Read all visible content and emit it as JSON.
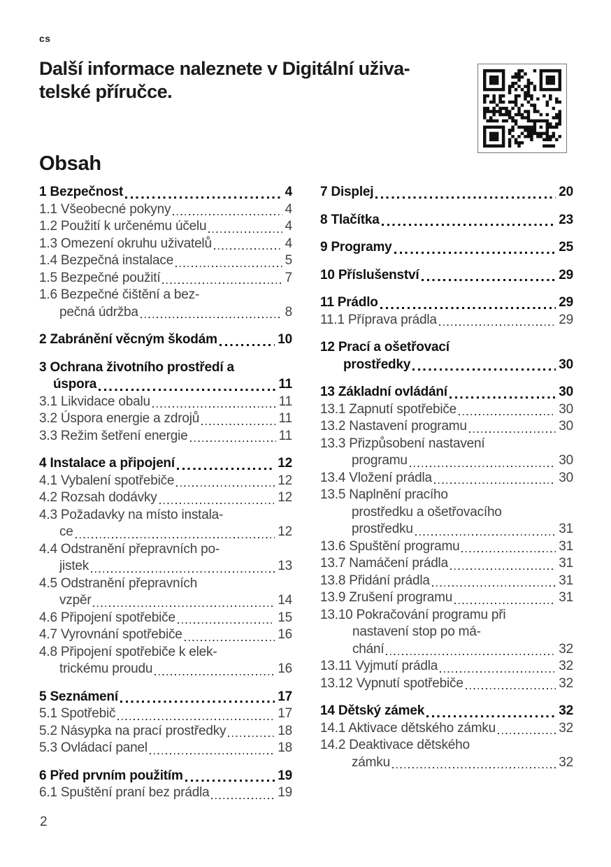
{
  "page": {
    "language_code": "cs",
    "heading_lines": [
      "Další informace naleznete v Digitální uživa-",
      "telské příručce."
    ],
    "qr_icon": "qr-code",
    "toc_title": "Obsah",
    "footer_page_number": "2"
  },
  "toc": {
    "columns": [
      [
        {
          "bold": true,
          "lines": [
            "1 Bezpečnost"
          ],
          "page": "4"
        },
        {
          "bold": false,
          "lines": [
            "1.1 Všeobecné pokyny"
          ],
          "page": "4"
        },
        {
          "bold": false,
          "lines": [
            "1.2 Použití k určenému účelu"
          ],
          "page": "4"
        },
        {
          "bold": false,
          "lines": [
            "1.3 Omezení okruhu uživatelů"
          ],
          "page": "4"
        },
        {
          "bold": false,
          "lines": [
            "1.4 Bezpečná instalace"
          ],
          "page": "5"
        },
        {
          "bold": false,
          "lines": [
            "1.5 Bezpečné použití"
          ],
          "page": "7"
        },
        {
          "bold": false,
          "lines": [
            "1.6 Bezpečné čištění a bez-",
            "pečná údržba"
          ],
          "page": "8",
          "indent": 29
        },
        {
          "bold": true,
          "lines": [
            "2 Zabránění věcným škodám"
          ],
          "page": "10"
        },
        {
          "bold": true,
          "lines": [
            "3 Ochrana životního prostředí a",
            "úspora"
          ],
          "page": "11",
          "indent": 20
        },
        {
          "bold": false,
          "lines": [
            "3.1 Likvidace obalu"
          ],
          "page": "11"
        },
        {
          "bold": false,
          "lines": [
            "3.2 Úspora energie a zdrojů"
          ],
          "page": "11"
        },
        {
          "bold": false,
          "lines": [
            "3.3 Režim šetření energie"
          ],
          "page": "11"
        },
        {
          "bold": true,
          "lines": [
            "4 Instalace a připojení"
          ],
          "page": "12"
        },
        {
          "bold": false,
          "lines": [
            "4.1 Vybalení spotřebiče"
          ],
          "page": "12"
        },
        {
          "bold": false,
          "lines": [
            "4.2 Rozsah dodávky"
          ],
          "page": "12"
        },
        {
          "bold": false,
          "lines": [
            "4.3 Požadavky na místo instala-",
            "ce"
          ],
          "page": "12",
          "indent": 29
        },
        {
          "bold": false,
          "lines": [
            "4.4 Odstranění přepravních po-",
            "jistek"
          ],
          "page": "13",
          "indent": 29
        },
        {
          "bold": false,
          "lines": [
            "4.5 Odstranění přepravních",
            "vzpěr"
          ],
          "page": "14",
          "indent": 29
        },
        {
          "bold": false,
          "lines": [
            "4.6 Připojení spotřebiče"
          ],
          "page": "15"
        },
        {
          "bold": false,
          "lines": [
            "4.7 Vyrovnání spotřebiče"
          ],
          "page": "16"
        },
        {
          "bold": false,
          "lines": [
            "4.8 Připojení spotřebiče k elek-",
            "trickému proudu"
          ],
          "page": "16",
          "indent": 29
        },
        {
          "bold": true,
          "lines": [
            "5 Seznámení"
          ],
          "page": "17"
        },
        {
          "bold": false,
          "lines": [
            "5.1 Spotřebič"
          ],
          "page": "17"
        },
        {
          "bold": false,
          "lines": [
            "5.2 Násypka na prací prostředky"
          ],
          "page": "18"
        },
        {
          "bold": false,
          "lines": [
            "5.3 Ovládací panel"
          ],
          "page": "18"
        },
        {
          "bold": true,
          "lines": [
            "6 Před prvním použitím"
          ],
          "page": "19"
        },
        {
          "bold": false,
          "lines": [
            "6.1 Spuštění praní bez prádla"
          ],
          "page": "19"
        }
      ],
      [
        {
          "bold": true,
          "lines": [
            "7 Displej"
          ],
          "page": "20"
        },
        {
          "bold": true,
          "lines": [
            "8 Tlačítka"
          ],
          "page": "23"
        },
        {
          "bold": true,
          "lines": [
            "9 Programy"
          ],
          "page": "25"
        },
        {
          "bold": true,
          "lines": [
            "10 Příslušenství"
          ],
          "page": "29"
        },
        {
          "bold": true,
          "lines": [
            "11 Prádlo"
          ],
          "page": "29"
        },
        {
          "bold": false,
          "lines": [
            "11.1 Příprava prádla"
          ],
          "page": "29"
        },
        {
          "bold": true,
          "lines": [
            "12 Prací a ošetřovací",
            "prostředky"
          ],
          "page": "30",
          "indent": 33
        },
        {
          "bold": true,
          "lines": [
            "13 Základní ovládání"
          ],
          "page": "30"
        },
        {
          "bold": false,
          "lines": [
            "13.1 Zapnutí spotřebiče"
          ],
          "page": "30"
        },
        {
          "bold": false,
          "lines": [
            "13.2 Nastavení programu"
          ],
          "page": "30"
        },
        {
          "bold": false,
          "lines": [
            "13.3 Přizpůsobení nastavení",
            "programu"
          ],
          "page": "30",
          "indent": 45
        },
        {
          "bold": false,
          "lines": [
            "13.4 Vložení prádla"
          ],
          "page": "30"
        },
        {
          "bold": false,
          "lines": [
            "13.5 Naplnění pracího",
            "prostředku a ošetřovacího",
            "prostředku"
          ],
          "page": "31",
          "indent": 45
        },
        {
          "bold": false,
          "lines": [
            "13.6 Spuštění programu"
          ],
          "page": "31"
        },
        {
          "bold": false,
          "lines": [
            "13.7 Namáčení prádla"
          ],
          "page": "31"
        },
        {
          "bold": false,
          "lines": [
            "13.8 Přidání prádla"
          ],
          "page": "31"
        },
        {
          "bold": false,
          "lines": [
            "13.9 Zrušení programu"
          ],
          "page": "31"
        },
        {
          "bold": false,
          "lines": [
            "13.10 Pokračování programu při",
            "nastavení stop po má-",
            "chání"
          ],
          "page": "32",
          "indent": 46
        },
        {
          "bold": false,
          "lines": [
            "13.11 Vyjmutí prádla"
          ],
          "page": "32"
        },
        {
          "bold": false,
          "lines": [
            "13.12 Vypnutí spotřebiče"
          ],
          "page": "32"
        },
        {
          "bold": true,
          "lines": [
            "14 Dětský zámek"
          ],
          "page": "32"
        },
        {
          "bold": false,
          "lines": [
            "14.1 Aktivace dětského zámku"
          ],
          "page": "32"
        },
        {
          "bold": false,
          "lines": [
            "14.2 Deaktivace dětského",
            "zámku"
          ],
          "page": "32",
          "indent": 45
        }
      ]
    ]
  },
  "colors": {
    "text_primary": "#1a1a1a",
    "text_secondary": "#424242",
    "background": "#ffffff",
    "qr_border": "#777777"
  }
}
